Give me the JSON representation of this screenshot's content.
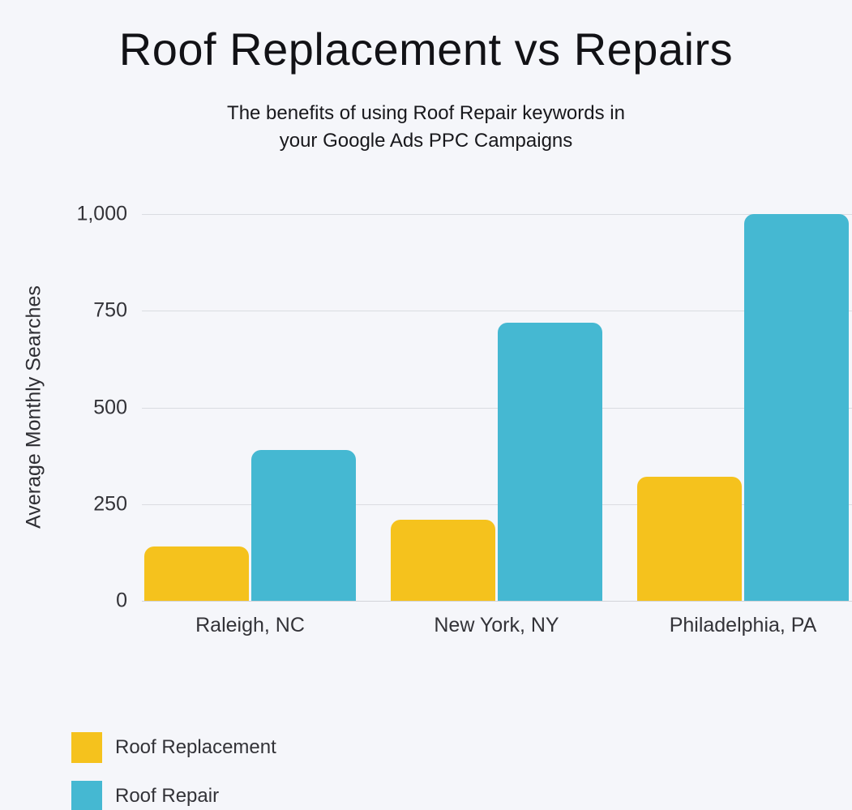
{
  "header": {
    "title": "Roof Replacement vs Repairs",
    "subtitle_lines": [
      "The benefits of using Roof Repair keywords in",
      "your Google Ads PPC Campaigns"
    ]
  },
  "chart_data": {
    "type": "bar",
    "title": "Roof Replacement vs Repairs",
    "subtitle": "The benefits of using Roof Repair keywords in your Google Ads PPC Campaigns",
    "categories": [
      "Raleigh, NC",
      "New York, NY",
      "Philadelphia, PA"
    ],
    "series": [
      {
        "name": "Roof Replacement",
        "color": "#F5C21D",
        "values": [
          140,
          210,
          320
        ]
      },
      {
        "name": "Roof Repair",
        "color": "#45B8D2",
        "values": [
          390,
          720,
          1000
        ]
      }
    ],
    "xlabel": "",
    "ylabel": "Average Monthly Searches",
    "ylim": [
      0,
      1000
    ],
    "yticks": [
      0,
      250,
      500,
      750,
      1000
    ],
    "ytick_labels": [
      "0",
      "250",
      "500",
      "750",
      "1,000"
    ],
    "grid": "horizontal",
    "legend_position": "bottom-left"
  },
  "colors": {
    "background": "#F5F6FA",
    "gridline": "#DADCE1",
    "axis_line": "#D2D4D9",
    "bar_yellow": "#F5C21D",
    "bar_teal": "#45B8D2",
    "title_text": "#121216",
    "label_text": "#333338"
  }
}
